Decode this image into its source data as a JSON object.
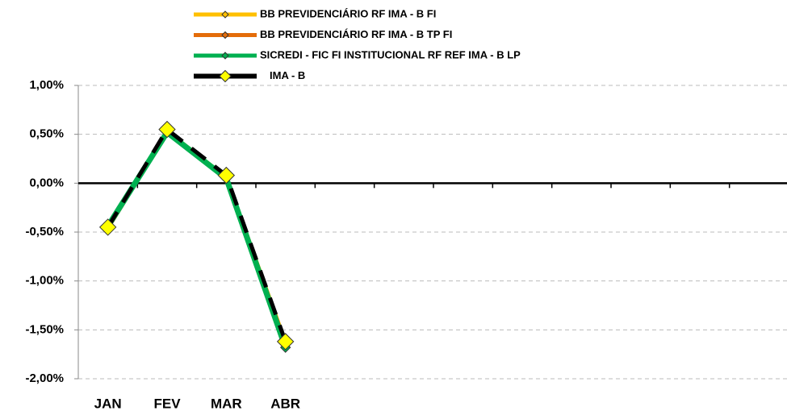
{
  "chart_data": {
    "type": "line",
    "categories": [
      "JAN",
      "FEV",
      "MAR",
      "ABR",
      null,
      null,
      null,
      null,
      null,
      null,
      null,
      null
    ],
    "series": [
      {
        "name": "BB PREVIDENCIÁRIO RF IMA - B FI",
        "color": "#FFC000",
        "values": [
          -0.45,
          0.53,
          0.06,
          -1.63,
          null,
          null,
          null,
          null,
          null,
          null,
          null,
          null
        ]
      },
      {
        "name": "BB PREVIDENCIÁRIO RF IMA - B TP FI",
        "color": "#E46C0A",
        "values": [
          -0.46,
          0.52,
          0.05,
          -1.64,
          null,
          null,
          null,
          null,
          null,
          null,
          null,
          null
        ]
      },
      {
        "name": "SICREDI - FIC FI INSTITUCIONAL RF REF IMA - B LP",
        "color": "#00B050",
        "values": [
          -0.44,
          0.52,
          0.05,
          -1.68,
          null,
          null,
          null,
          null,
          null,
          null,
          null,
          null
        ]
      },
      {
        "name": "IMA - B",
        "color": "#000000",
        "values": [
          -0.45,
          0.55,
          0.08,
          -1.62,
          null,
          null,
          null,
          null,
          null,
          null,
          null,
          null
        ]
      }
    ],
    "ylim": [
      -2,
      1
    ],
    "yticks": [
      {
        "value": -2,
        "label": "-2,00%"
      },
      {
        "value": -1.5,
        "label": "-1,50%"
      },
      {
        "value": -1,
        "label": "-1,00%"
      },
      {
        "value": -0.5,
        "label": "-0,50%"
      },
      {
        "value": 0,
        "label": "0,00%"
      },
      {
        "value": 0.5,
        "label": "0,50%"
      },
      {
        "value": 1,
        "label": "1,00%"
      }
    ],
    "grid": true
  }
}
